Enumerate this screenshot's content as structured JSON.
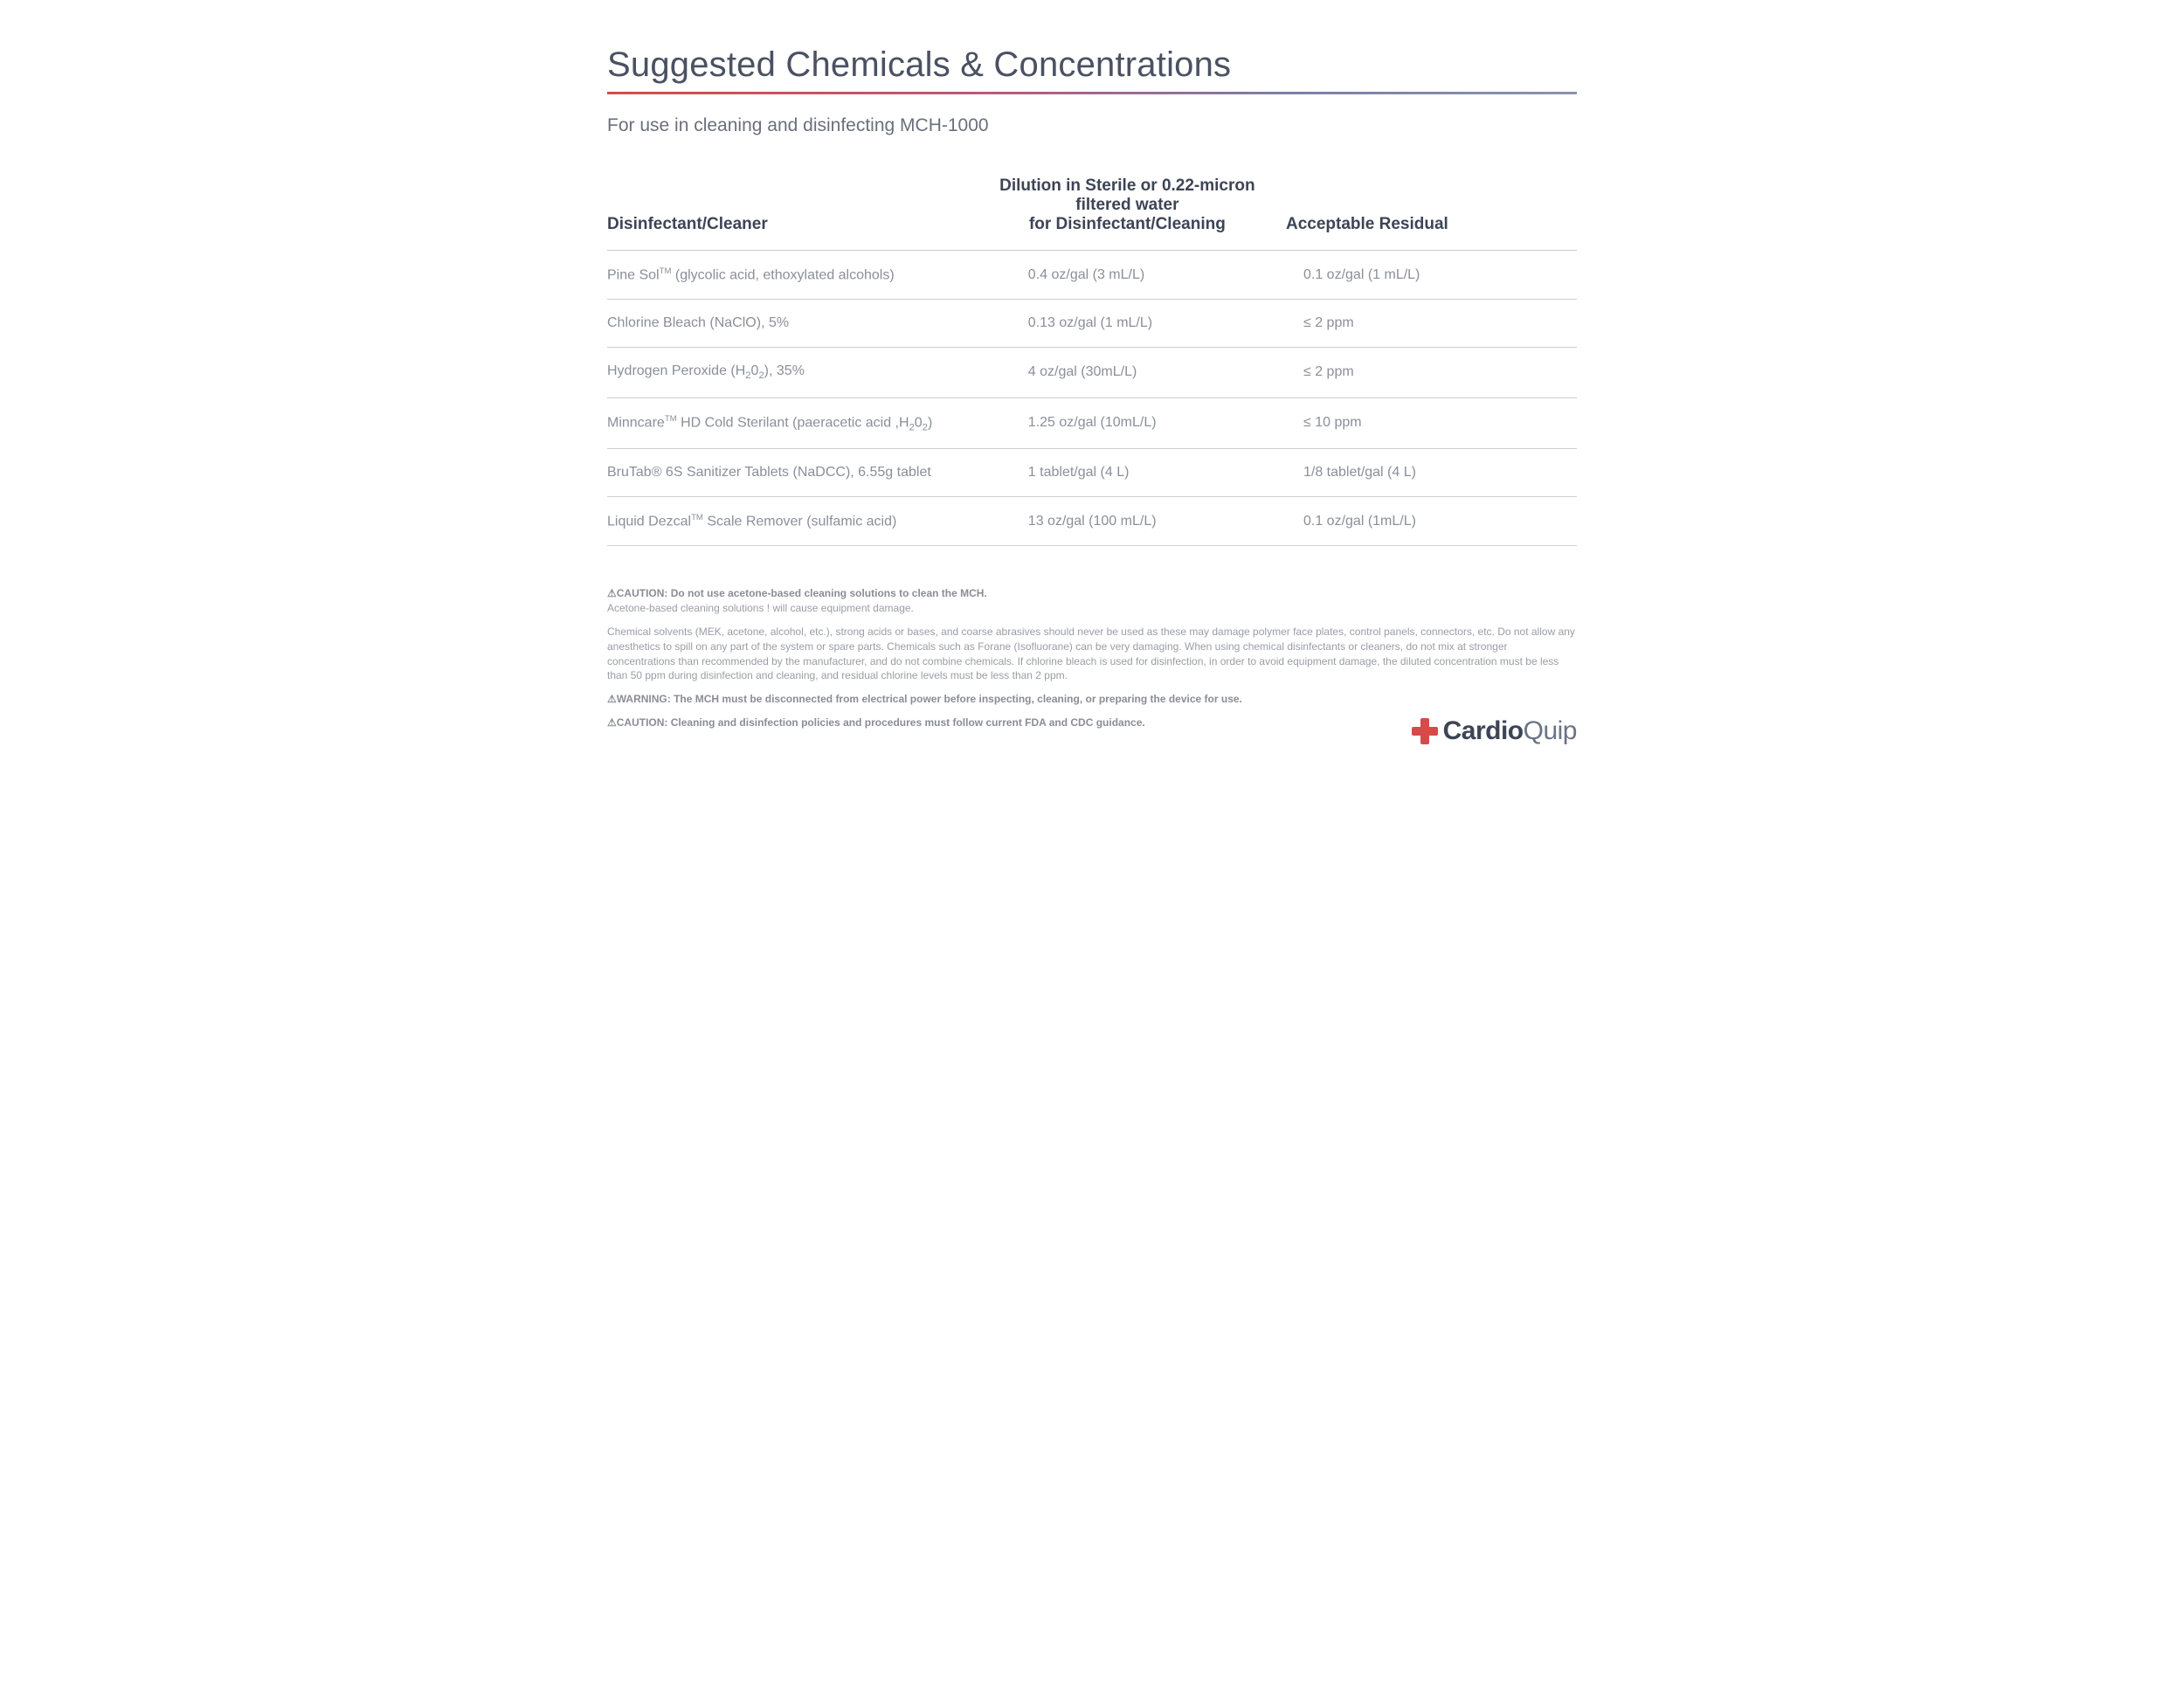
{
  "title": "Suggested Chemicals & Concentrations",
  "subtitle": "For use in cleaning and disinfecting MCH-1000",
  "colors": {
    "rule_gradient_start": "#d84a4a",
    "rule_gradient_end": "#8b93ad",
    "heading": "#4a5162",
    "body_text": "#8a8f99",
    "border": "#cfcfcf",
    "logo_plus": "#d84a4a",
    "logo_text": "#3d4455"
  },
  "table": {
    "columns": [
      "Disinfectant/Cleaner",
      "Dilution in Sterile or 0.22-micron filtered water for Disinfectant/Cleaning",
      "Acceptable Residual"
    ],
    "rows": [
      {
        "cleaner_html": "Pine Sol<span class='tm'>TM</span> (glycolic acid, ethoxylated alcohols)",
        "dilution": "0.4 oz/gal (3 mL/L)",
        "residual": "0.1 oz/gal (1 mL/L)"
      },
      {
        "cleaner_html": "Chlorine Bleach (NaClO), 5%",
        "dilution": "0.13 oz/gal (1 mL/L)",
        "residual": "≤ 2 ppm"
      },
      {
        "cleaner_html": "Hydrogen Peroxide (H<span class='sub'>2</span>0<span class='sub'>2</span>), 35%",
        "dilution": "4 oz/gal (30mL/L)",
        "residual": "≤ 2 ppm"
      },
      {
        "cleaner_html": "Minncare<span class='tm'>TM</span> HD Cold Sterilant (paeracetic acid ,H<span class='sub'>2</span>0<span class='sub'>2</span>)",
        "dilution": "1.25 oz/gal (10mL/L)",
        "residual": "≤ 10 ppm"
      },
      {
        "cleaner_html": "BruTab® 6S Sanitizer Tablets (NaDCC), 6.55g tablet",
        "dilution": "1 tablet/gal (4 L)",
        "residual": "1/8 tablet/gal (4 L)"
      },
      {
        "cleaner_html": "Liquid Dezcal<span class='tm'>TM</span> Scale Remover (sulfamic acid)",
        "dilution": "13 oz/gal (100 mL/L)",
        "residual": "0.1 oz/gal (1mL/L)"
      }
    ]
  },
  "notes": {
    "caution1_hdr": "⚠CAUTION: Do not use acetone-based cleaning solutions to clean the MCH.",
    "caution1_body": "Acetone-based cleaning solutions ! will cause equipment damage.",
    "para": "Chemical solvents (MEK, acetone, alcohol, etc.), strong acids or bases, and coarse abrasives should never be used as these may damage polymer face plates, control panels, connectors, etc. Do not allow any anesthetics to spill on any part of the system or spare parts. Chemicals such as Forane (Isofluorane) can be very damaging. When using chemical disinfectants or cleaners, do not mix at stronger concentrations than recommended by the manufacturer, and do not combine chemicals. If chlorine bleach is used for disinfection, in order to avoid equipment damage, the diluted concentration must be less than 50 ppm during disinfection and cleaning, and residual chlorine levels must be less than 2 ppm.",
    "warning": "⚠WARNING: The MCH must be disconnected from electrical power before inspecting, cleaning, or preparing the device for use.",
    "caution2": "⚠CAUTION: Cleaning and disinfection policies and procedures must follow current FDA and CDC guidance."
  },
  "logo": {
    "bold": "Cardio",
    "light": "Quip"
  }
}
